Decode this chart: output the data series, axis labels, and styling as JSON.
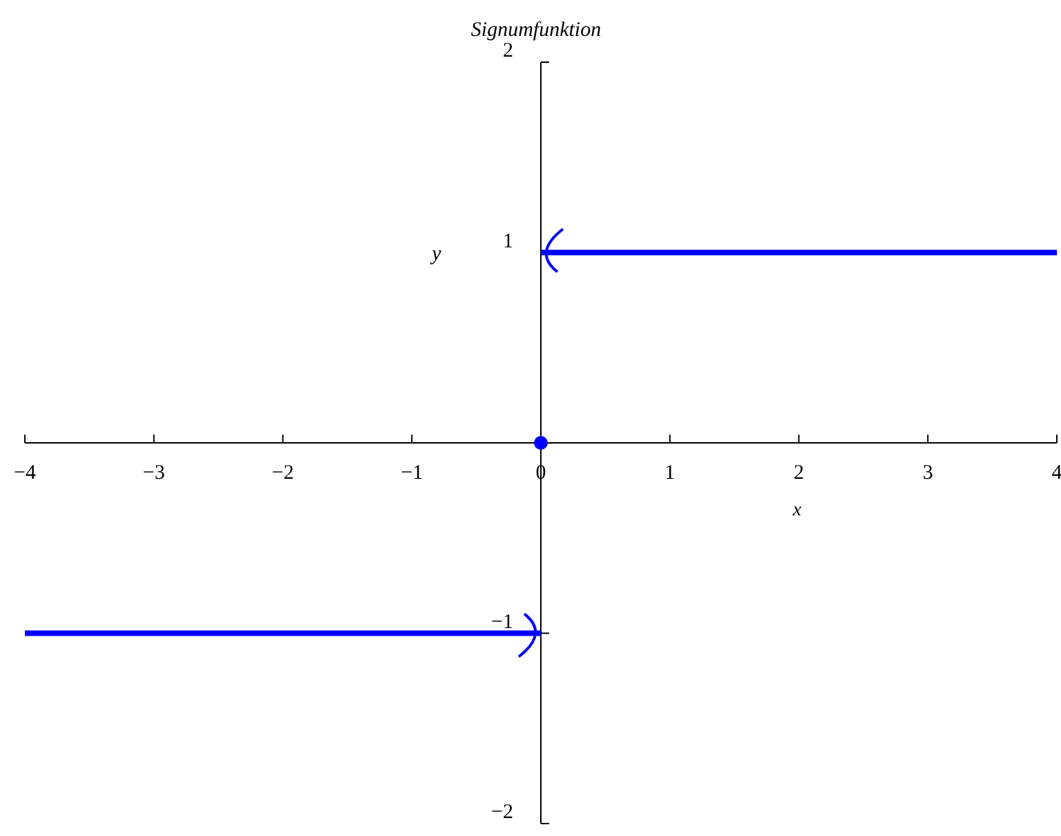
{
  "chart_data": {
    "type": "line",
    "title": "Signumfunktion",
    "xlabel": "x",
    "ylabel": "y",
    "xlim": [
      -4,
      4
    ],
    "ylim": [
      -2,
      2
    ],
    "xticks": [
      {
        "value": -4,
        "label": "−4"
      },
      {
        "value": -3,
        "label": "−3"
      },
      {
        "value": -2,
        "label": "−2"
      },
      {
        "value": -1,
        "label": "−1"
      },
      0,
      1,
      2,
      3,
      4
    ],
    "yticks": [
      {
        "value": -2,
        "label": "−2"
      },
      {
        "value": -1,
        "label": "−1"
      },
      1,
      2
    ],
    "grid": false,
    "series": [
      {
        "color": "#0000ff",
        "x": [
          -4,
          0
        ],
        "values": [
          -1,
          -1
        ]
      },
      {
        "color": "#0000ff",
        "x": [
          0,
          4
        ],
        "values": [
          1,
          1
        ]
      },
      {
        "type": "scatter",
        "color": "#0000ff",
        "x": [
          0
        ],
        "values": [
          0
        ],
        "marker": "circle"
      }
    ]
  }
}
